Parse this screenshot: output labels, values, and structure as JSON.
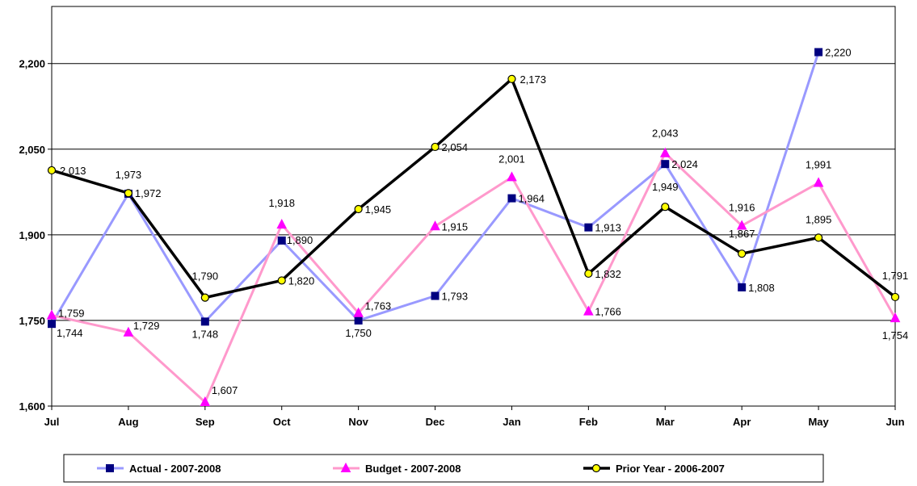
{
  "chart_data": {
    "type": "line",
    "categories": [
      "Jul",
      "Aug",
      "Sep",
      "Oct",
      "Nov",
      "Dec",
      "Jan",
      "Feb",
      "Mar",
      "Apr",
      "May",
      "Jun"
    ],
    "ylim": [
      1600,
      2300
    ],
    "yticks": [
      1600,
      1750,
      1900,
      2050,
      2200
    ],
    "ytick_labels": [
      "1,600",
      "1,750",
      "1,900",
      "2,050",
      "2,200"
    ],
    "grid": true,
    "legend_position": "bottom",
    "series": [
      {
        "name": "Actual -  2007-2008",
        "color": "#9999ff",
        "marker": "square",
        "marker_color": "#000080",
        "values": [
          1744,
          1972,
          1748,
          1890,
          1750,
          1793,
          1964,
          1913,
          2024,
          1808,
          2220,
          null
        ],
        "labels": [
          "1,744",
          "1,972",
          "1,748",
          "1,890",
          "1,750",
          "1,793",
          "1,964",
          "1,913",
          "2,024",
          "1,808",
          "2,220",
          ""
        ]
      },
      {
        "name": "Budget - 2007-2008",
        "color": "#ff99cc",
        "marker": "triangle",
        "marker_color": "#ff00ff",
        "values": [
          1759,
          1729,
          1607,
          1918,
          1763,
          1915,
          2001,
          1766,
          2043,
          1916,
          1991,
          1754
        ],
        "labels": [
          "1,759",
          "1,729",
          "1,607",
          "1,918",
          "1,763",
          "1,915",
          "2,001",
          "1,766",
          "2,043",
          "1,916",
          "1,991",
          "1,754"
        ]
      },
      {
        "name": "Prior Year - 2006-2007",
        "color": "#000000",
        "marker": "circle",
        "marker_color": "#ffff00",
        "values": [
          2013,
          1973,
          1790,
          1820,
          1945,
          2054,
          2173,
          1832,
          1949,
          1867,
          1895,
          1791
        ],
        "labels": [
          "2,013",
          "1,973",
          "1,790",
          "1,820",
          "1,945",
          "2,054",
          "2,173",
          "1,832",
          "1,949",
          "1,867",
          "1,895",
          "1,791"
        ]
      }
    ]
  }
}
